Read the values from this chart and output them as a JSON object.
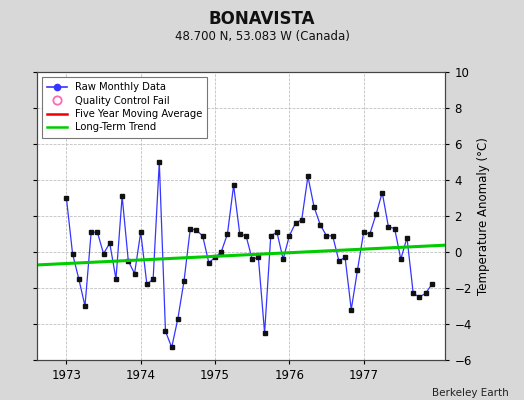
{
  "title": "BONAVISTA",
  "subtitle": "48.700 N, 53.083 W (Canada)",
  "ylabel": "Temperature Anomaly (°C)",
  "credit": "Berkeley Earth",
  "ylim": [
    -6,
    10
  ],
  "xlim": [
    1972.6,
    1978.1
  ],
  "xticks": [
    1973,
    1974,
    1975,
    1976,
    1977
  ],
  "yticks": [
    -6,
    -4,
    -2,
    0,
    2,
    4,
    6,
    8,
    10
  ],
  "raw_x": [
    1973.0,
    1973.083,
    1973.167,
    1973.25,
    1973.333,
    1973.417,
    1973.5,
    1973.583,
    1973.667,
    1973.75,
    1973.833,
    1973.917,
    1974.0,
    1974.083,
    1974.167,
    1974.25,
    1974.333,
    1974.417,
    1974.5,
    1974.583,
    1974.667,
    1974.75,
    1974.833,
    1974.917,
    1975.0,
    1975.083,
    1975.167,
    1975.25,
    1975.333,
    1975.417,
    1975.5,
    1975.583,
    1975.667,
    1975.75,
    1975.833,
    1975.917,
    1976.0,
    1976.083,
    1976.167,
    1976.25,
    1976.333,
    1976.417,
    1976.5,
    1976.583,
    1976.667,
    1976.75,
    1976.833,
    1976.917,
    1977.0,
    1977.083,
    1977.167,
    1977.25,
    1977.333,
    1977.417,
    1977.5,
    1977.583,
    1977.667,
    1977.75,
    1977.833,
    1977.917
  ],
  "raw_y": [
    3.0,
    -0.1,
    -1.5,
    -3.0,
    1.1,
    1.1,
    -0.1,
    0.5,
    -1.5,
    3.1,
    -0.5,
    -1.2,
    1.1,
    -1.8,
    -1.5,
    5.0,
    -4.4,
    -5.3,
    -3.7,
    -1.6,
    1.3,
    1.2,
    0.9,
    -0.6,
    -0.3,
    0.0,
    1.0,
    3.7,
    1.0,
    0.9,
    -0.4,
    -0.3,
    -4.5,
    0.9,
    1.1,
    -0.4,
    0.9,
    1.6,
    1.8,
    4.2,
    2.5,
    1.5,
    0.9,
    0.9,
    -0.5,
    -0.3,
    -3.2,
    -1.0,
    1.1,
    1.0,
    2.1,
    3.3,
    1.4,
    1.3,
    -0.4,
    0.8,
    -2.3,
    -2.5,
    -2.3,
    -1.8
  ],
  "trend_x": [
    1972.6,
    1978.1
  ],
  "trend_y": [
    -0.72,
    0.38
  ],
  "raw_line_color": "#3535ff",
  "raw_marker_color": "#111111",
  "trend_color": "#00cc00",
  "moving_avg_color": "#ee0000",
  "bg_color": "#d8d8d8",
  "plot_bg_color": "#ffffff",
  "border_color": "#444444",
  "grid_color": "#bbbbbb"
}
